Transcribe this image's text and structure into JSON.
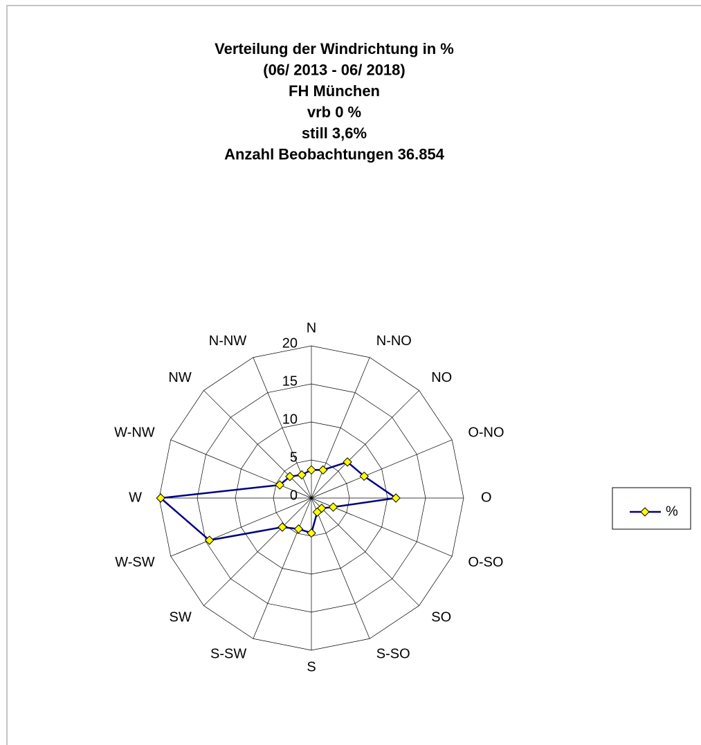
{
  "chart_data": {
    "type": "radar",
    "title": [
      "Verteilung der Windrichtung in %",
      "(06/ 2013 - 06/ 2018)",
      "FH München",
      "vrb 0 %",
      "still 3,6%",
      "Anzahl Beobachtungen 36.854"
    ],
    "categories": [
      "N",
      "N-NO",
      "NO",
      "O-NO",
      "O",
      "O-SO",
      "SO",
      "S-SO",
      "S",
      "S-SW",
      "SW",
      "W-SW",
      "W",
      "W-NW",
      "NW",
      "N-NW"
    ],
    "series": [
      {
        "name": "%",
        "color": "#000080",
        "marker_color": "#ffff00",
        "values": [
          3.7,
          4.0,
          6.7,
          7.5,
          11.1,
          3.1,
          1.9,
          2.0,
          4.6,
          4.4,
          5.4,
          14.5,
          19.8,
          4.5,
          4.0,
          3.3
        ]
      }
    ],
    "ylim": [
      0,
      20
    ],
    "yticks": [
      0,
      5,
      10,
      15,
      20
    ],
    "grid": true,
    "legend": "right"
  }
}
